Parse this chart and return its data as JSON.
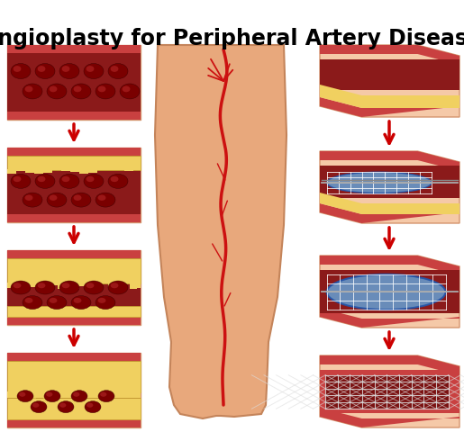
{
  "title": "Angioplasty for Peripheral Artery Disease",
  "title_fontsize": 17,
  "title_fontweight": "bold",
  "bg_color": "#ffffff",
  "outer_peach": "#f5c9a8",
  "wall_red": "#c94040",
  "inner_dark_red": "#8b1a1a",
  "plaque_yellow": "#f0d060",
  "plaque_edge": "#c8a830",
  "arrow_color": "#cc0000",
  "balloon_blue": "#6699cc",
  "balloon_edge": "#2255aa",
  "stent_dark": "#444444",
  "leg_skin": "#e8a87c",
  "leg_artery": "#cc1111",
  "cell_dark": "#7a0000",
  "cell_mid": "#aa2222"
}
